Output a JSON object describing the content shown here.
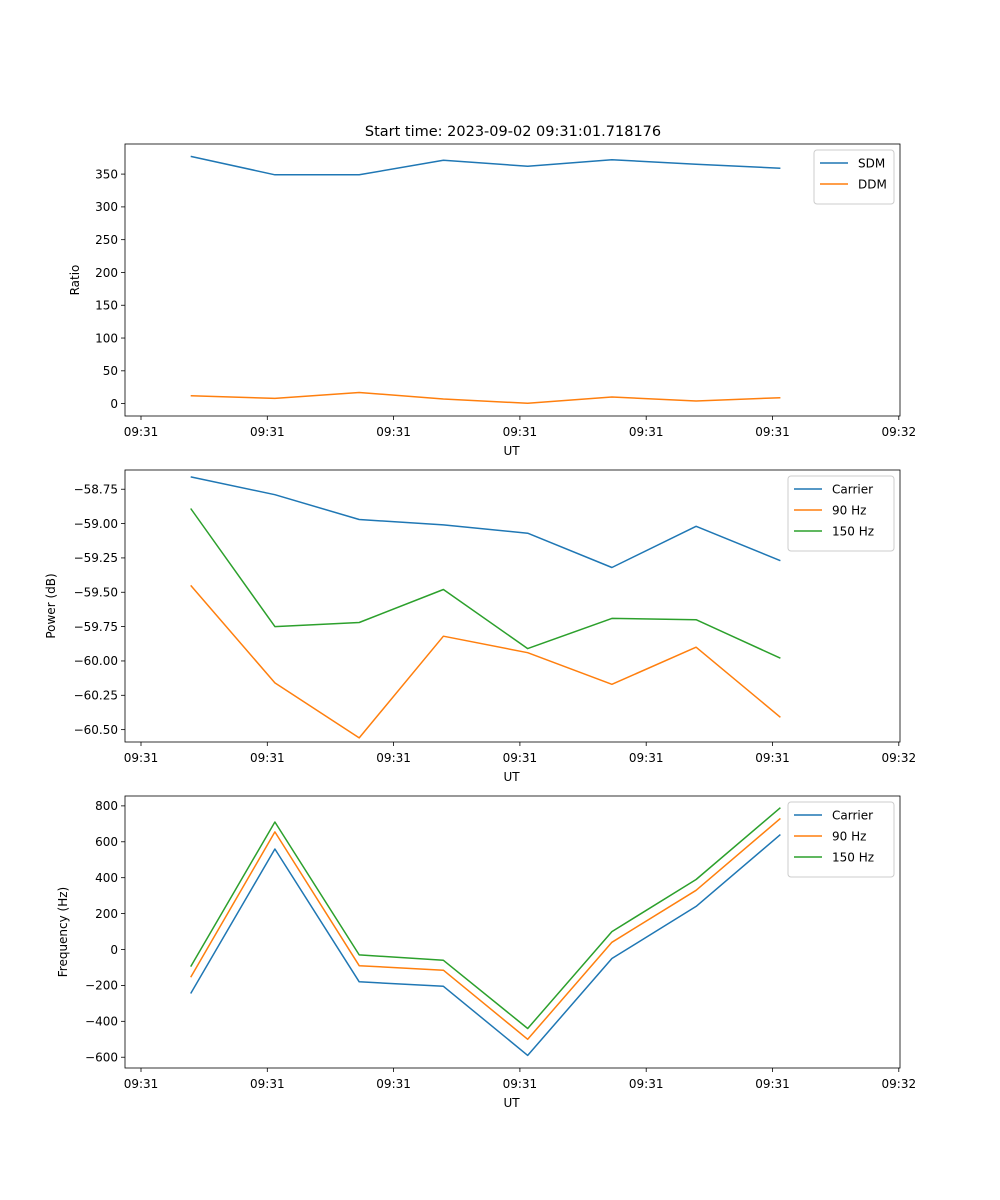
{
  "figure_title": "Start time: 2023-09-02 09:31:01.718176",
  "colors": {
    "blue": "#1f77b4",
    "orange": "#ff7f0e",
    "green": "#2ca02c"
  },
  "chart_data": [
    {
      "type": "line",
      "title": "Start time: 2023-09-02 09:31:01.718176",
      "xlabel": "UT",
      "ylabel": "Ratio",
      "x_tick_labels": [
        "09:31",
        "09:31",
        "09:31",
        "09:31",
        "09:31",
        "09:31",
        "09:32"
      ],
      "y_ticks": [
        0,
        50,
        100,
        150,
        200,
        250,
        300,
        350
      ],
      "y_tick_labels": [
        "0",
        "50",
        "100",
        "150",
        "200",
        "250",
        "300",
        "350"
      ],
      "ylim": [
        -18.9,
        395.9
      ],
      "x": [
        1,
        2,
        3,
        4,
        5,
        6,
        7,
        8
      ],
      "xlim": [
        0.22,
        9.42
      ],
      "series": [
        {
          "name": "SDM",
          "color": "#1f77b4",
          "values": [
            377,
            349,
            349,
            371,
            362,
            372,
            365,
            359
          ]
        },
        {
          "name": "DDM",
          "color": "#ff7f0e",
          "values": [
            12,
            8,
            17,
            7,
            0.5,
            10,
            4,
            9
          ]
        }
      ],
      "legend": "top-right"
    },
    {
      "type": "line",
      "title": "",
      "xlabel": "UT",
      "ylabel": "Power (dB)",
      "x_tick_labels": [
        "09:31",
        "09:31",
        "09:31",
        "09:31",
        "09:31",
        "09:31",
        "09:32"
      ],
      "y_ticks": [
        -58.75,
        -59.0,
        -59.25,
        -59.5,
        -59.75,
        -60.0,
        -60.25,
        -60.5
      ],
      "y_tick_labels": [
        "−58.75",
        "−59.00",
        "−59.25",
        "−59.50",
        "−59.75",
        "−60.00",
        "−60.25",
        "−60.50"
      ],
      "ylim": [
        -60.59,
        -58.61
      ],
      "x": [
        1,
        2,
        3,
        4,
        5,
        6,
        7,
        8
      ],
      "xlim": [
        0.22,
        9.42
      ],
      "series": [
        {
          "name": "Carrier",
          "color": "#1f77b4",
          "values": [
            -58.66,
            -58.79,
            -58.97,
            -59.01,
            -59.07,
            -59.32,
            -59.02,
            -59.27
          ]
        },
        {
          "name": "90 Hz",
          "color": "#ff7f0e",
          "values": [
            -59.45,
            -60.16,
            -60.56,
            -59.82,
            -59.94,
            -60.17,
            -59.9,
            -60.41
          ]
        },
        {
          "name": "150 Hz",
          "color": "#2ca02c",
          "values": [
            -58.89,
            -59.75,
            -59.72,
            -59.48,
            -59.91,
            -59.69,
            -59.7,
            -59.98
          ]
        }
      ],
      "legend": "top-right"
    },
    {
      "type": "line",
      "title": "",
      "xlabel": "UT",
      "ylabel": "Frequency (Hz)",
      "x_tick_labels": [
        "09:31",
        "09:31",
        "09:31",
        "09:31",
        "09:31",
        "09:31",
        "09:32"
      ],
      "y_ticks": [
        -600,
        -400,
        -200,
        0,
        200,
        400,
        600,
        800
      ],
      "y_tick_labels": [
        "−600",
        "−400",
        "−200",
        "0",
        "200",
        "400",
        "600",
        "800"
      ],
      "ylim": [
        -660,
        855
      ],
      "x": [
        1,
        2,
        3,
        4,
        5,
        6,
        7,
        8
      ],
      "xlim": [
        0.22,
        9.42
      ],
      "series": [
        {
          "name": "Carrier",
          "color": "#1f77b4",
          "values": [
            -245,
            560,
            -180,
            -205,
            -590,
            -50,
            240,
            640
          ]
        },
        {
          "name": "90 Hz",
          "color": "#ff7f0e",
          "values": [
            -155,
            655,
            -90,
            -115,
            -500,
            40,
            330,
            730
          ]
        },
        {
          "name": "150 Hz",
          "color": "#2ca02c",
          "values": [
            -95,
            710,
            -30,
            -60,
            -440,
            100,
            390,
            790
          ]
        }
      ],
      "legend": "top-right"
    }
  ]
}
